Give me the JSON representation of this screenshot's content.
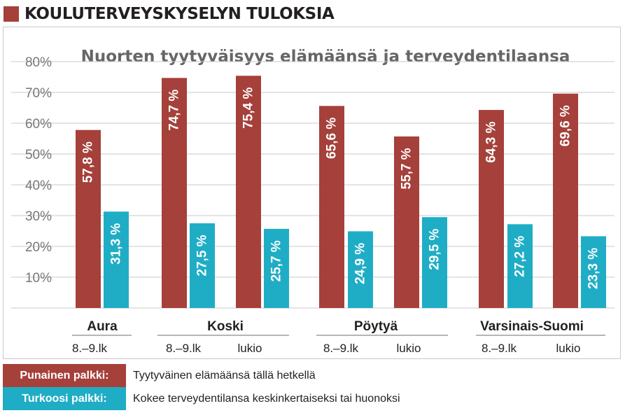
{
  "header": {
    "title": "KOULUTERVEYSKYSELYN TULOKSIA"
  },
  "colors": {
    "red": "#a6403a",
    "teal": "#1fadc6",
    "header_square": "#a6403a"
  },
  "chart_data": {
    "type": "bar",
    "title": "Nuorten tyytyväisyys elämäänsä ja terveydentilaansa",
    "ylim": [
      0,
      80
    ],
    "yticks": [
      "80%",
      "70%",
      "60%",
      "50%",
      "40%",
      "30%",
      "20%",
      "10%"
    ],
    "grid": true,
    "groups": [
      {
        "name": "Aura",
        "subcategories": [
          "8.–9.lk"
        ]
      },
      {
        "name": "Koski",
        "subcategories": [
          "8.–9.lk",
          "lukio"
        ]
      },
      {
        "name": "Pöytyä",
        "subcategories": [
          "8.–9.lk",
          "lukio"
        ]
      },
      {
        "name": "Varsinais-Suomi",
        "subcategories": [
          "8.–9.lk",
          "lukio"
        ]
      }
    ],
    "series": [
      {
        "name": "Punainen palkki",
        "color": "#a6403a",
        "values": [
          57.8,
          74.7,
          75.4,
          65.6,
          55.7,
          64.3,
          69.6
        ],
        "labels": [
          "57,8 %",
          "74,7 %",
          "75,4 %",
          "65,6 %",
          "55,7 %",
          "64,3 %",
          "69,6 %"
        ]
      },
      {
        "name": "Turkoosi palkki",
        "color": "#1fadc6",
        "values": [
          31.3,
          27.5,
          25.7,
          24.9,
          29.5,
          27.2,
          23.3
        ],
        "labels": [
          "31,3 %",
          "27,5 %",
          "25,7 %",
          "24,9 %",
          "29,5 %",
          "27,2 %",
          "23,3 %"
        ]
      }
    ]
  },
  "legend": [
    {
      "label": "Punainen palkki:",
      "text": "Tyytyväinen elämäänsä tällä hetkellä",
      "color": "#a6403a"
    },
    {
      "label": "Turkoosi palkki:",
      "text": "Kokee terveydentilansa keskinkertaiseksi tai huonoksi",
      "color": "#1fadc6"
    }
  ]
}
